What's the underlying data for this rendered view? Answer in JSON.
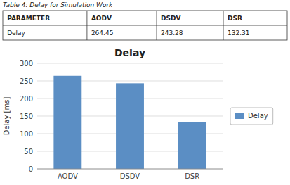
{
  "chart_data": {
    "type": "bar",
    "title": "Delay",
    "categories": [
      "AODV",
      "DSDV",
      "DSR"
    ],
    "series": [
      {
        "name": "Delay",
        "color": "#5b8ec4",
        "values": [
          264.45,
          243.28,
          132.31
        ]
      }
    ],
    "ylabel": "Delay [ms]",
    "ylim": [
      0,
      300
    ],
    "yticks": [
      0,
      50,
      100,
      150,
      200,
      250,
      300
    ],
    "grid": true,
    "legend": "right",
    "table": {
      "title": "Table 4: Delay for Simulation Work",
      "headers": [
        "PARAMETER",
        "AODV",
        "DSDV",
        "DSR"
      ],
      "rows": [
        [
          "Delay",
          "264.45",
          "243.28",
          "132.31"
        ]
      ]
    }
  }
}
